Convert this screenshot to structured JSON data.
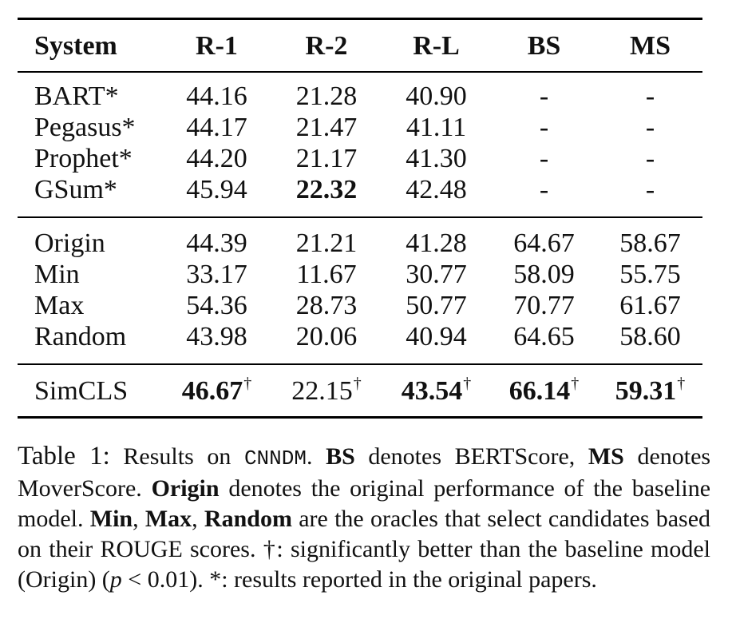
{
  "table": {
    "headers": [
      "System",
      "R-1",
      "R-2",
      "R-L",
      "BS",
      "MS"
    ],
    "groups": [
      [
        {
          "system": "BART*",
          "r1": "44.16",
          "r2": "21.28",
          "rl": "40.90",
          "bs": "-",
          "ms": "-"
        },
        {
          "system": "Pegasus*",
          "r1": "44.17",
          "r2": "21.47",
          "rl": "41.11",
          "bs": "-",
          "ms": "-"
        },
        {
          "system": "Prophet*",
          "r1": "44.20",
          "r2": "21.17",
          "rl": "41.30",
          "bs": "-",
          "ms": "-"
        },
        {
          "system": "GSum*",
          "r1": "45.94",
          "r2": "22.32",
          "rl": "42.48",
          "bs": "-",
          "ms": "-"
        }
      ],
      [
        {
          "system": "Origin",
          "r1": "44.39",
          "r2": "21.21",
          "rl": "41.28",
          "bs": "64.67",
          "ms": "58.67"
        },
        {
          "system": "Min",
          "r1": "33.17",
          "r2": "11.67",
          "rl": "30.77",
          "bs": "58.09",
          "ms": "55.75"
        },
        {
          "system": "Max",
          "r1": "54.36",
          "r2": "28.73",
          "rl": "50.77",
          "bs": "70.77",
          "ms": "61.67"
        },
        {
          "system": "Random",
          "r1": "43.98",
          "r2": "20.06",
          "rl": "40.94",
          "bs": "64.65",
          "ms": "58.60"
        }
      ],
      [
        {
          "system": "SimCLS",
          "r1": "46.67",
          "r2": "22.15",
          "rl": "43.54",
          "bs": "66.14",
          "ms": "59.31"
        }
      ]
    ],
    "dagger": "†"
  },
  "caption": {
    "label": "Table 1:",
    "t1": "Results on",
    "dataset": "CNNDM",
    "t2": ".",
    "bs": "BS",
    "t3": "denotes BERTScore,",
    "ms": "MS",
    "t4": "denotes MoverScore.",
    "origin": "Origin",
    "t5": "denotes the original performance of the baseline model.",
    "min": "Min",
    "comma1": ",",
    "max": "Max",
    "comma2": ",",
    "random": "Random",
    "t6": "are the oracles that select candidates based on their ROUGE scores. †: significantly better than the baseline model (Origin) (",
    "p": "p",
    "t7": "< 0.01). *: results reported in the original papers."
  }
}
